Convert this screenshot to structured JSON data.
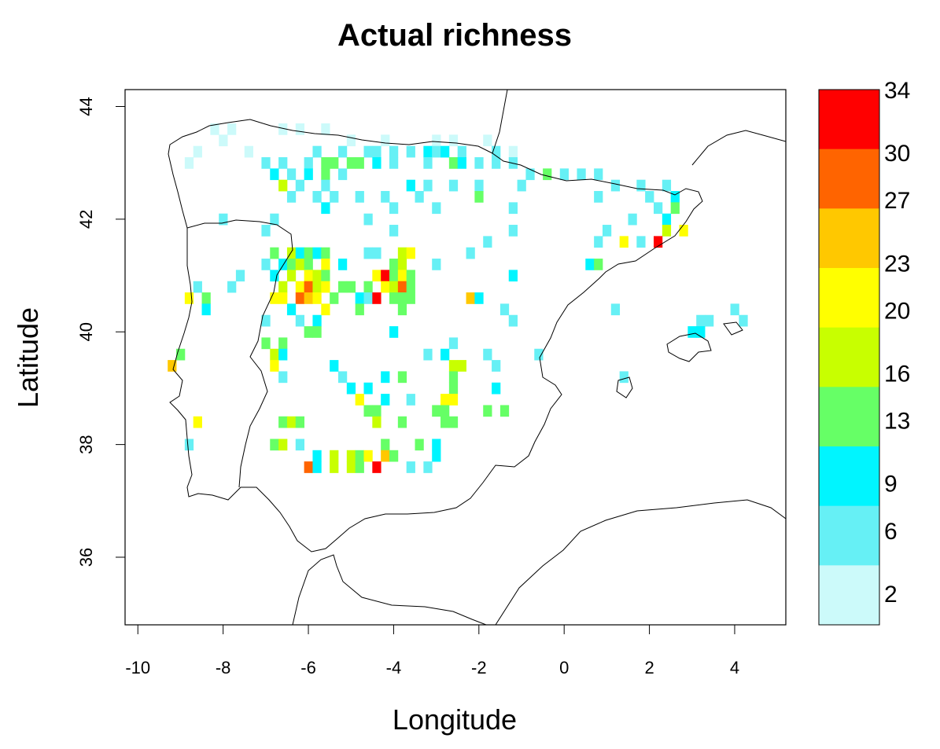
{
  "chart_data": {
    "type": "heatmap",
    "title": "Actual richness",
    "xlabel": "Longitude",
    "ylabel": "Latitude",
    "xlim": [
      -10.3,
      5.2
    ],
    "ylim": [
      34.8,
      44.3
    ],
    "x_ticks": [
      "-10",
      "-8",
      "-6",
      "-4",
      "-2",
      "0",
      "2",
      "4"
    ],
    "y_ticks": [
      "36",
      "38",
      "40",
      "42",
      "44"
    ],
    "grid": false,
    "legend": {
      "placement": "right",
      "labels": [
        "2",
        "6",
        "9",
        "13",
        "16",
        "20",
        "23",
        "27",
        "30",
        "34"
      ],
      "colors": [
        "#ccfafa",
        "#66f0f5",
        "#00f5ff",
        "#66ff66",
        "#c8ff00",
        "#ffff00",
        "#ffc800",
        "#ff6400",
        "#ff0000"
      ],
      "breaks": [
        0,
        3.8,
        7.6,
        11.3,
        15.1,
        18.9,
        22.7,
        26.4,
        30.2,
        34
      ]
    },
    "cell_size_deg": 0.2,
    "cells": [
      [
        -8.2,
        43.6,
        1
      ],
      [
        -7.8,
        43.6,
        1
      ],
      [
        -6.6,
        43.6,
        1
      ],
      [
        -6.2,
        43.6,
        1
      ],
      [
        -5.6,
        43.6,
        1
      ],
      [
        -8.0,
        43.4,
        2
      ],
      [
        -5.0,
        43.4,
        2
      ],
      [
        -4.2,
        43.4,
        1
      ],
      [
        -3.0,
        43.4,
        3
      ],
      [
        -2.6,
        43.4,
        3
      ],
      [
        -1.8,
        43.4,
        2
      ],
      [
        -8.6,
        43.2,
        2
      ],
      [
        -7.4,
        43.2,
        1
      ],
      [
        -5.8,
        43.2,
        5
      ],
      [
        -5.2,
        43.2,
        6
      ],
      [
        -4.6,
        43.2,
        7
      ],
      [
        -4.4,
        43.2,
        7
      ],
      [
        -4.0,
        43.2,
        5
      ],
      [
        -3.6,
        43.2,
        6
      ],
      [
        -3.2,
        43.2,
        8
      ],
      [
        -3.0,
        43.2,
        7
      ],
      [
        -2.8,
        43.2,
        8
      ],
      [
        -2.4,
        43.2,
        6
      ],
      [
        -1.6,
        43.2,
        4
      ],
      [
        -1.2,
        43.2,
        3
      ],
      [
        -8.8,
        43.0,
        2
      ],
      [
        -7.0,
        43.0,
        6
      ],
      [
        -6.6,
        43.0,
        7
      ],
      [
        -6.0,
        43.0,
        6
      ],
      [
        -5.6,
        43.0,
        15
      ],
      [
        -5.4,
        43.0,
        14
      ],
      [
        -5.0,
        43.0,
        15
      ],
      [
        -4.8,
        43.0,
        14
      ],
      [
        -4.4,
        43.0,
        8
      ],
      [
        -4.0,
        43.0,
        5
      ],
      [
        -3.2,
        43.0,
        6
      ],
      [
        -2.6,
        43.0,
        14
      ],
      [
        -2.4,
        43.0,
        8
      ],
      [
        -2.0,
        43.0,
        6
      ],
      [
        -1.6,
        43.0,
        7
      ],
      [
        -1.2,
        43.0,
        6
      ],
      [
        -6.8,
        42.8,
        8
      ],
      [
        -6.4,
        42.8,
        6
      ],
      [
        -6.0,
        42.8,
        9
      ],
      [
        -5.6,
        42.8,
        14
      ],
      [
        -5.2,
        42.8,
        7
      ],
      [
        -0.8,
        42.8,
        7
      ],
      [
        -0.4,
        42.8,
        13
      ],
      [
        0.0,
        42.8,
        6
      ],
      [
        0.4,
        42.8,
        5
      ],
      [
        0.8,
        42.8,
        5
      ],
      [
        -6.6,
        42.6,
        18
      ],
      [
        -6.2,
        42.6,
        6
      ],
      [
        -5.6,
        42.6,
        5
      ],
      [
        -3.6,
        42.6,
        9
      ],
      [
        -3.2,
        42.6,
        6
      ],
      [
        -2.6,
        42.6,
        4
      ],
      [
        -2.0,
        42.6,
        5
      ],
      [
        -1.0,
        42.6,
        4
      ],
      [
        1.2,
        42.6,
        6
      ],
      [
        1.8,
        42.6,
        5
      ],
      [
        2.4,
        42.6,
        6
      ],
      [
        -6.4,
        42.4,
        5
      ],
      [
        -5.8,
        42.4,
        6
      ],
      [
        -5.4,
        42.4,
        5
      ],
      [
        -4.8,
        42.4,
        5
      ],
      [
        -4.2,
        42.4,
        4
      ],
      [
        -3.4,
        42.4,
        5
      ],
      [
        -2.0,
        42.4,
        13
      ],
      [
        0.8,
        42.4,
        4
      ],
      [
        2.0,
        42.4,
        6
      ],
      [
        2.6,
        42.4,
        8
      ],
      [
        -5.6,
        42.2,
        9
      ],
      [
        -4.0,
        42.2,
        5
      ],
      [
        -3.0,
        42.2,
        4
      ],
      [
        -1.2,
        42.2,
        5
      ],
      [
        2.2,
        42.2,
        7
      ],
      [
        2.6,
        42.2,
        14
      ],
      [
        -8.0,
        42.0,
        6
      ],
      [
        -6.8,
        42.0,
        4
      ],
      [
        -4.6,
        42.0,
        4
      ],
      [
        1.6,
        42.0,
        5
      ],
      [
        2.4,
        42.0,
        9
      ],
      [
        -7.0,
        41.8,
        5
      ],
      [
        -4.0,
        41.8,
        4
      ],
      [
        -1.2,
        41.8,
        5
      ],
      [
        1.0,
        41.8,
        6
      ],
      [
        2.4,
        41.8,
        16
      ],
      [
        2.8,
        41.8,
        19
      ],
      [
        -1.8,
        41.6,
        4
      ],
      [
        0.8,
        41.6,
        5
      ],
      [
        1.4,
        41.6,
        22
      ],
      [
        1.8,
        41.6,
        6
      ],
      [
        2.2,
        41.6,
        34
      ],
      [
        -6.8,
        41.4,
        14
      ],
      [
        -6.4,
        41.4,
        16
      ],
      [
        -6.2,
        41.4,
        8
      ],
      [
        -6.0,
        41.4,
        14
      ],
      [
        -5.8,
        41.4,
        9
      ],
      [
        -5.6,
        41.4,
        14
      ],
      [
        -4.6,
        41.4,
        7
      ],
      [
        -4.4,
        41.4,
        6
      ],
      [
        -3.8,
        41.4,
        16
      ],
      [
        -3.6,
        41.4,
        21
      ],
      [
        -2.2,
        41.4,
        5
      ],
      [
        -7.0,
        41.2,
        5
      ],
      [
        -6.6,
        41.2,
        9
      ],
      [
        -6.4,
        41.2,
        14
      ],
      [
        -6.2,
        41.2,
        17
      ],
      [
        -6.0,
        41.2,
        12
      ],
      [
        -5.6,
        41.2,
        19
      ],
      [
        -5.2,
        41.2,
        9
      ],
      [
        -4.0,
        41.2,
        15
      ],
      [
        -3.8,
        41.2,
        16
      ],
      [
        -3.0,
        41.2,
        5
      ],
      [
        0.6,
        41.2,
        9
      ],
      [
        0.8,
        41.2,
        14
      ],
      [
        -7.6,
        41.0,
        5
      ],
      [
        -6.8,
        41.0,
        8
      ],
      [
        -6.4,
        41.0,
        16
      ],
      [
        -6.0,
        41.0,
        20
      ],
      [
        -5.8,
        41.0,
        18
      ],
      [
        -5.6,
        41.0,
        12
      ],
      [
        -4.4,
        41.0,
        19
      ],
      [
        -4.2,
        41.0,
        34
      ],
      [
        -4.0,
        41.0,
        14
      ],
      [
        -3.8,
        41.0,
        21
      ],
      [
        -3.6,
        41.0,
        13
      ],
      [
        -1.2,
        41.0,
        9
      ],
      [
        -8.6,
        40.8,
        5
      ],
      [
        -7.8,
        40.8,
        6
      ],
      [
        -6.6,
        40.8,
        16
      ],
      [
        -6.2,
        40.8,
        20
      ],
      [
        -6.0,
        40.8,
        29
      ],
      [
        -5.8,
        40.8,
        16
      ],
      [
        -5.6,
        40.8,
        19
      ],
      [
        -5.2,
        40.8,
        14
      ],
      [
        -5.0,
        40.8,
        12
      ],
      [
        -4.6,
        40.8,
        14
      ],
      [
        -4.2,
        40.8,
        21
      ],
      [
        -4.0,
        40.8,
        18
      ],
      [
        -3.8,
        40.8,
        30
      ],
      [
        -3.6,
        40.8,
        15
      ],
      [
        -8.8,
        40.6,
        20
      ],
      [
        -8.4,
        40.6,
        13
      ],
      [
        -6.8,
        40.6,
        19
      ],
      [
        -6.6,
        40.6,
        20
      ],
      [
        -6.2,
        40.6,
        29
      ],
      [
        -6.0,
        40.6,
        25
      ],
      [
        -5.8,
        40.6,
        20
      ],
      [
        -5.4,
        40.6,
        14
      ],
      [
        -4.8,
        40.6,
        9
      ],
      [
        -4.6,
        40.6,
        7
      ],
      [
        -4.4,
        40.6,
        34
      ],
      [
        -4.0,
        40.6,
        13
      ],
      [
        -3.8,
        40.6,
        14
      ],
      [
        -3.6,
        40.6,
        13
      ],
      [
        -2.2,
        40.6,
        26
      ],
      [
        -2.0,
        40.6,
        9
      ],
      [
        -8.4,
        40.4,
        9
      ],
      [
        -6.4,
        40.4,
        9
      ],
      [
        -5.6,
        40.4,
        19
      ],
      [
        -4.8,
        40.4,
        13
      ],
      [
        -3.8,
        40.4,
        12
      ],
      [
        -1.4,
        40.4,
        5
      ],
      [
        1.2,
        40.4,
        4
      ],
      [
        4.0,
        40.4,
        5
      ],
      [
        -7.0,
        40.2,
        4
      ],
      [
        -6.2,
        40.2,
        6
      ],
      [
        -5.8,
        40.2,
        9
      ],
      [
        -1.2,
        40.2,
        4
      ],
      [
        3.2,
        40.2,
        5
      ],
      [
        3.4,
        40.2,
        4
      ],
      [
        4.2,
        40.2,
        6
      ],
      [
        -6.0,
        40.0,
        14
      ],
      [
        -5.8,
        40.0,
        14
      ],
      [
        -4.0,
        40.0,
        9
      ],
      [
        3.0,
        40.0,
        8
      ],
      [
        3.2,
        40.0,
        8
      ],
      [
        -7.0,
        39.8,
        13
      ],
      [
        -6.6,
        39.8,
        13
      ],
      [
        -2.6,
        39.8,
        5
      ],
      [
        -9.0,
        39.6,
        14
      ],
      [
        -6.8,
        39.6,
        17
      ],
      [
        -6.6,
        39.6,
        9
      ],
      [
        -3.2,
        39.6,
        6
      ],
      [
        -2.8,
        39.6,
        9
      ],
      [
        -1.8,
        39.6,
        7
      ],
      [
        -0.6,
        39.6,
        5
      ],
      [
        -9.2,
        39.4,
        25
      ],
      [
        -6.8,
        39.4,
        21
      ],
      [
        -5.4,
        39.4,
        9
      ],
      [
        -2.6,
        39.4,
        16
      ],
      [
        -2.4,
        39.4,
        18
      ],
      [
        -1.6,
        39.4,
        6
      ],
      [
        -6.6,
        39.2,
        5
      ],
      [
        -5.2,
        39.2,
        6
      ],
      [
        -4.2,
        39.2,
        9
      ],
      [
        -3.8,
        39.2,
        13
      ],
      [
        -2.6,
        39.2,
        14
      ],
      [
        1.4,
        39.2,
        5
      ],
      [
        -5.0,
        39.0,
        9
      ],
      [
        -4.6,
        39.0,
        9
      ],
      [
        -2.6,
        39.0,
        15
      ],
      [
        -1.6,
        39.0,
        9
      ],
      [
        -4.8,
        38.8,
        21
      ],
      [
        -4.2,
        38.8,
        9
      ],
      [
        -3.6,
        38.8,
        5
      ],
      [
        -2.8,
        38.8,
        21
      ],
      [
        -2.6,
        38.8,
        19
      ],
      [
        -4.6,
        38.6,
        15
      ],
      [
        -4.4,
        38.6,
        13
      ],
      [
        -3.0,
        38.6,
        14
      ],
      [
        -2.8,
        38.6,
        15
      ],
      [
        -1.8,
        38.6,
        12
      ],
      [
        -1.4,
        38.6,
        14
      ],
      [
        -8.6,
        38.4,
        19
      ],
      [
        -6.6,
        38.4,
        13
      ],
      [
        -6.4,
        38.4,
        16
      ],
      [
        -6.2,
        38.4,
        12
      ],
      [
        -4.4,
        38.4,
        16
      ],
      [
        -3.8,
        38.4,
        15
      ],
      [
        -2.8,
        38.4,
        14
      ],
      [
        -2.6,
        38.4,
        15
      ],
      [
        -8.8,
        38.0,
        7
      ],
      [
        -6.8,
        38.0,
        13
      ],
      [
        -6.6,
        38.0,
        16
      ],
      [
        -6.2,
        38.0,
        5
      ],
      [
        -4.2,
        38.0,
        12
      ],
      [
        -3.4,
        38.0,
        13
      ],
      [
        -3.0,
        38.0,
        9
      ],
      [
        -5.8,
        37.8,
        9
      ],
      [
        -5.4,
        37.8,
        16
      ],
      [
        -5.0,
        37.8,
        18
      ],
      [
        -4.8,
        37.8,
        14
      ],
      [
        -4.6,
        37.8,
        21
      ],
      [
        -4.2,
        37.8,
        25
      ],
      [
        -4.0,
        37.8,
        14
      ],
      [
        -3.0,
        37.8,
        9
      ],
      [
        -6.0,
        37.6,
        29
      ],
      [
        -5.8,
        37.6,
        8
      ],
      [
        -5.4,
        37.6,
        16
      ],
      [
        -5.0,
        37.6,
        16
      ],
      [
        -4.8,
        37.6,
        13
      ],
      [
        -4.4,
        37.6,
        34
      ],
      [
        -3.6,
        37.6,
        6
      ],
      [
        -3.2,
        37.6,
        5
      ]
    ]
  }
}
